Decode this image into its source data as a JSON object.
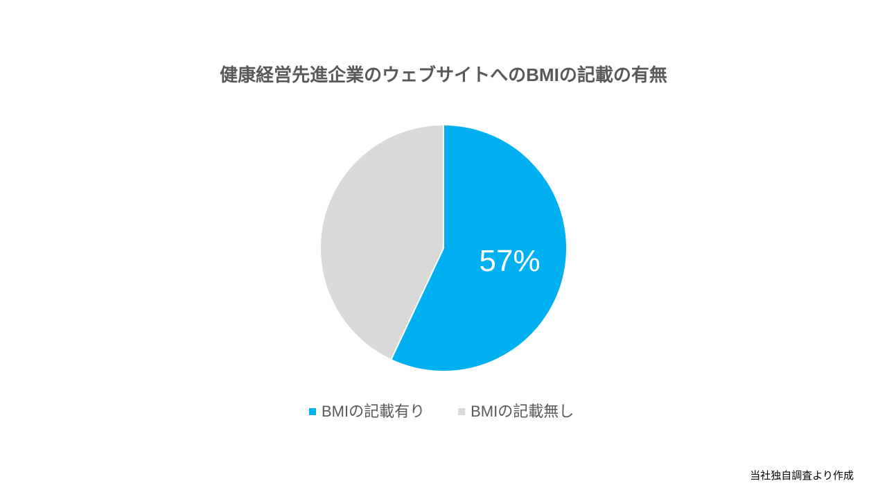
{
  "chart_data": {
    "type": "pie",
    "title": "健康経営先進企業のウェブサイトへのBMIの記載の有無",
    "categories": [
      "BMIの記載有り",
      "BMIの記載無し"
    ],
    "values": [
      57,
      43
    ],
    "value_labels": [
      "57%",
      null
    ],
    "colors": [
      "#00b0f0",
      "#d9d9d9"
    ],
    "legend": "bottom",
    "note": "当社独自調査より作成"
  }
}
